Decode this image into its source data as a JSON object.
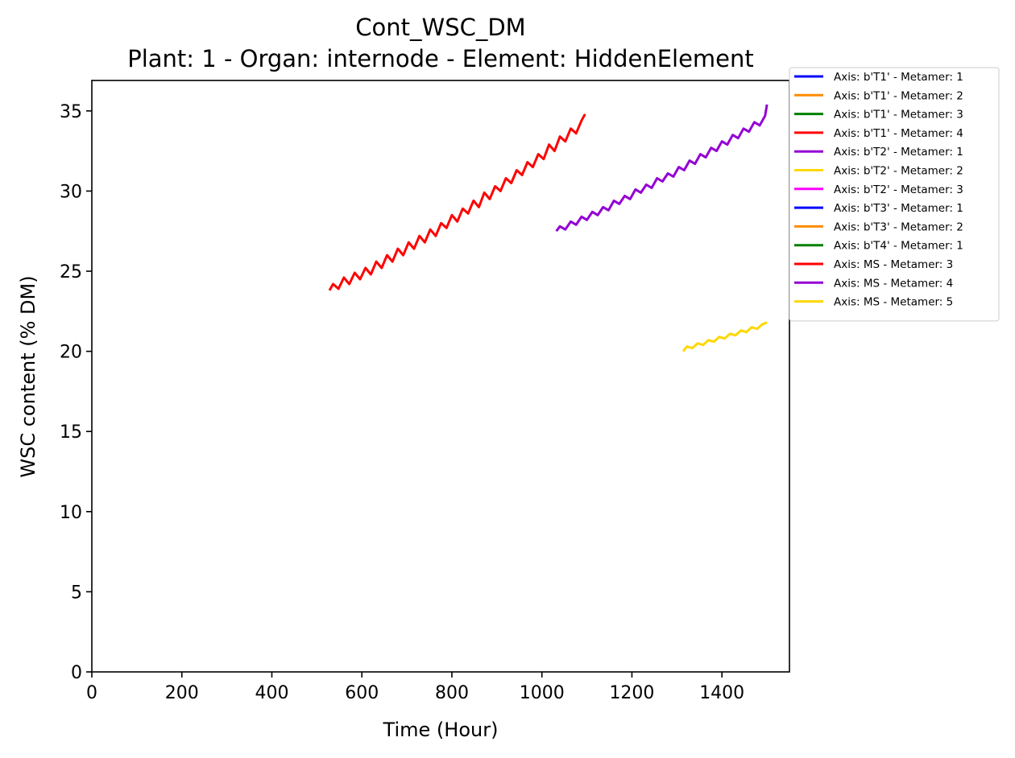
{
  "chart_data": {
    "type": "line",
    "title": "Cont_WSC_DM",
    "subtitle": "Plant: 1 - Organ: internode - Element: HiddenElement",
    "xlabel": "Time (Hour)",
    "ylabel": "WSC content (% DM)",
    "xlim": [
      0,
      1550
    ],
    "ylim": [
      0,
      36.9
    ],
    "x_ticks": [
      0,
      200,
      400,
      600,
      800,
      1000,
      1200,
      1400
    ],
    "y_ticks": [
      0,
      5,
      10,
      15,
      20,
      25,
      30,
      35
    ],
    "grid": false,
    "legend_position": "outside-right",
    "series": [
      {
        "name": "Axis: b'T1' - Metamer: 1",
        "color": "#0000ff",
        "x": [],
        "y": []
      },
      {
        "name": "Axis: b'T1' - Metamer: 2",
        "color": "#ff8c00",
        "x": [],
        "y": []
      },
      {
        "name": "Axis: b'T1' - Metamer: 3",
        "color": "#008000",
        "x": [],
        "y": []
      },
      {
        "name": "Axis: b'T1' - Metamer: 4",
        "color": "#ff0000",
        "x": [],
        "y": []
      },
      {
        "name": "Axis: b'T2' - Metamer: 1",
        "color": "#9400d3",
        "x": [],
        "y": []
      },
      {
        "name": "Axis: b'T2' - Metamer: 2",
        "color": "#ffd700",
        "x": [],
        "y": []
      },
      {
        "name": "Axis: b'T2' - Metamer: 3",
        "color": "#ff00ff",
        "x": [],
        "y": []
      },
      {
        "name": "Axis: b'T3' - Metamer: 1",
        "color": "#0000ff",
        "x": [],
        "y": []
      },
      {
        "name": "Axis: b'T3' - Metamer: 2",
        "color": "#ff8c00",
        "x": [],
        "y": []
      },
      {
        "name": "Axis: b'T4' - Metamer: 1",
        "color": "#008000",
        "x": [],
        "y": []
      },
      {
        "name": "Axis: MS - Metamer: 3",
        "color": "#ff0000",
        "x": [
          528,
          536,
          548,
          560,
          572,
          584,
          596,
          608,
          620,
          632,
          644,
          656,
          668,
          680,
          692,
          704,
          716,
          728,
          740,
          752,
          764,
          776,
          788,
          800,
          812,
          824,
          836,
          848,
          860,
          872,
          884,
          896,
          908,
          920,
          932,
          944,
          956,
          968,
          980,
          992,
          1004,
          1016,
          1028,
          1040,
          1052,
          1064,
          1076,
          1088,
          1096
        ],
        "y": [
          23.8,
          24.2,
          23.9,
          24.6,
          24.2,
          24.9,
          24.5,
          25.2,
          24.8,
          25.6,
          25.2,
          26.0,
          25.6,
          26.4,
          26.0,
          26.8,
          26.4,
          27.2,
          26.8,
          27.6,
          27.2,
          28.0,
          27.7,
          28.5,
          28.1,
          28.9,
          28.6,
          29.4,
          29.0,
          29.9,
          29.5,
          30.3,
          30.0,
          30.8,
          30.5,
          31.3,
          31.0,
          31.8,
          31.5,
          32.3,
          32.0,
          32.9,
          32.5,
          33.4,
          33.1,
          33.9,
          33.6,
          34.4,
          34.8
        ]
      },
      {
        "name": "Axis: MS - Metamer: 4",
        "color": "#9400d3",
        "x": [
          1032,
          1040,
          1052,
          1064,
          1076,
          1088,
          1100,
          1112,
          1124,
          1136,
          1148,
          1160,
          1172,
          1184,
          1196,
          1208,
          1220,
          1232,
          1244,
          1256,
          1268,
          1280,
          1292,
          1304,
          1316,
          1328,
          1340,
          1352,
          1364,
          1376,
          1388,
          1400,
          1412,
          1424,
          1436,
          1448,
          1460,
          1472,
          1484,
          1496,
          1500
        ],
        "y": [
          27.5,
          27.8,
          27.6,
          28.1,
          27.9,
          28.4,
          28.2,
          28.7,
          28.5,
          29.0,
          28.8,
          29.4,
          29.2,
          29.7,
          29.5,
          30.1,
          29.9,
          30.4,
          30.2,
          30.8,
          30.6,
          31.1,
          30.9,
          31.5,
          31.3,
          31.9,
          31.7,
          32.3,
          32.1,
          32.7,
          32.5,
          33.1,
          32.9,
          33.5,
          33.3,
          33.9,
          33.7,
          34.3,
          34.1,
          34.7,
          35.4
        ]
      },
      {
        "name": "Axis: MS - Metamer: 5",
        "color": "#ffd700",
        "x": [
          1314,
          1322,
          1334,
          1346,
          1358,
          1370,
          1382,
          1394,
          1406,
          1418,
          1430,
          1442,
          1454,
          1466,
          1478,
          1490,
          1500
        ],
        "y": [
          20.0,
          20.3,
          20.2,
          20.5,
          20.4,
          20.7,
          20.6,
          20.9,
          20.8,
          21.1,
          21.0,
          21.3,
          21.2,
          21.5,
          21.4,
          21.7,
          21.8
        ]
      }
    ]
  }
}
